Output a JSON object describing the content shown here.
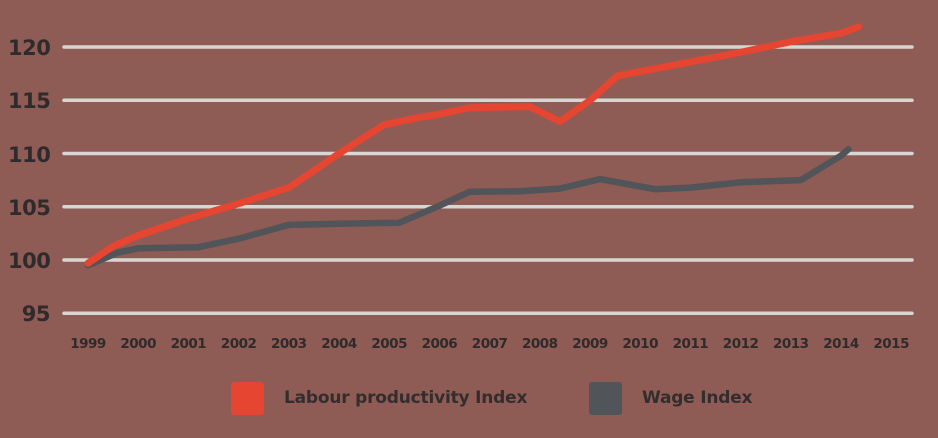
{
  "colors": {
    "background": "#8e5c54",
    "gridline": "#d8d6d2",
    "axis_text": "#2f2a2b",
    "legend_text": "#332d2e",
    "productivity_line": "#e54531",
    "wage_line": "#515459"
  },
  "chart_data": {
    "type": "line",
    "title": "",
    "xlabel": "",
    "ylabel": "",
    "grid": "horizontal",
    "legend_position": "bottom",
    "x_ticks": [
      "1999",
      "2000",
      "2001",
      "2002",
      "2003",
      "2004",
      "2005",
      "2006",
      "2007",
      "2008",
      "2009",
      "2010",
      "2011",
      "2012",
      "2013",
      "2014",
      "2015"
    ],
    "y_ticks": [
      120,
      115,
      110,
      105,
      100,
      95
    ],
    "ylim": [
      95,
      120
    ],
    "xlim": [
      1999,
      2015
    ],
    "series": [
      {
        "name": "Labour productivity Index",
        "color": "#e54531",
        "points": [
          [
            1999.0,
            99.7
          ],
          [
            1999.5,
            101.3
          ],
          [
            2000.0,
            102.3
          ],
          [
            2001.0,
            103.9
          ],
          [
            2002.0,
            105.3
          ],
          [
            2003.0,
            106.8
          ],
          [
            2004.0,
            110.0
          ],
          [
            2004.9,
            112.7
          ],
          [
            2005.5,
            113.3
          ],
          [
            2006.0,
            113.7
          ],
          [
            2006.6,
            114.3
          ],
          [
            2007.8,
            114.4
          ],
          [
            2008.4,
            113.0
          ],
          [
            2009.0,
            115.0
          ],
          [
            2009.55,
            117.3
          ],
          [
            2010.0,
            117.7
          ],
          [
            2011.0,
            118.6
          ],
          [
            2012.0,
            119.5
          ],
          [
            2013.0,
            120.5
          ],
          [
            2014.0,
            121.3
          ],
          [
            2014.35,
            121.9
          ]
        ]
      },
      {
        "name": "Wage Index",
        "color": "#515459",
        "points": [
          [
            1999.0,
            99.5
          ],
          [
            1999.6,
            100.7
          ],
          [
            2000.0,
            101.1
          ],
          [
            2001.2,
            101.2
          ],
          [
            2002.0,
            102.0
          ],
          [
            2003.0,
            103.3
          ],
          [
            2004.0,
            103.4
          ],
          [
            2005.2,
            103.5
          ],
          [
            2006.0,
            105.1
          ],
          [
            2006.6,
            106.4
          ],
          [
            2007.6,
            106.45
          ],
          [
            2008.4,
            106.7
          ],
          [
            2009.2,
            107.6
          ],
          [
            2010.3,
            106.65
          ],
          [
            2011.0,
            106.8
          ],
          [
            2012.0,
            107.3
          ],
          [
            2013.2,
            107.5
          ],
          [
            2014.0,
            109.8
          ],
          [
            2014.15,
            110.4
          ]
        ]
      }
    ]
  }
}
